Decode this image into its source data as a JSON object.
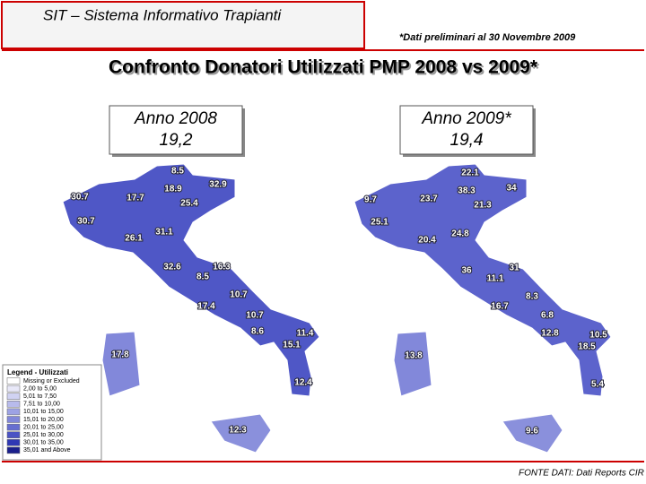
{
  "header": {
    "title": "SIT – Sistema Informativo Trapianti",
    "note": "*Dati preliminari al 30 Novembre 2009"
  },
  "main_title": "Confronto Donatori Utilizzati PMP 2008 vs 2009*",
  "maps": [
    {
      "title": "Anno 2008",
      "value": "19,2",
      "labels": [
        "8.5",
        "32.9",
        "30.7",
        "17.7",
        "18.9",
        "25.4",
        "30.7",
        "31.1",
        "26.1",
        "32.6",
        "16.3",
        "8.5",
        "10.7",
        "17.4",
        "10.7",
        "8.6",
        "11.4",
        "15.1",
        "17.8",
        "12.4",
        "12.3"
      ]
    },
    {
      "title": "Anno 2009*",
      "value": "19,4",
      "labels": [
        "22.1",
        "34",
        "9.7",
        "23.7",
        "38.3",
        "21.3",
        "25.1",
        "24.8",
        "20.4",
        "36",
        "31",
        "11.1",
        "8.3",
        "16.7",
        "6.8",
        "12.8",
        "10.5",
        "18.5",
        "13.8",
        "5.4",
        "9.6"
      ]
    }
  ],
  "legend": {
    "title": "Legend - Utilizzati",
    "entries": [
      {
        "label": "Missing or Excluded",
        "color": "#ffffff"
      },
      {
        "label": "2,00 to 5,00",
        "color": "#e8e8f8"
      },
      {
        "label": "5,01 to 7,50",
        "color": "#d0d2f2"
      },
      {
        "label": "7,51 to 10,00",
        "color": "#b8bbec"
      },
      {
        "label": "10,01 to 15,00",
        "color": "#9da2e4"
      },
      {
        "label": "15,01 to 20,00",
        "color": "#8288da"
      },
      {
        "label": "20,01 to 25,00",
        "color": "#676ed0"
      },
      {
        "label": "25,01 to 30,00",
        "color": "#4b53c4"
      },
      {
        "label": "30,01 to 35,00",
        "color": "#2f38b4"
      },
      {
        "label": "35,01 and Above",
        "color": "#1a1f8c"
      }
    ]
  },
  "source": "FONTE DATI: Dati Reports CIR"
}
